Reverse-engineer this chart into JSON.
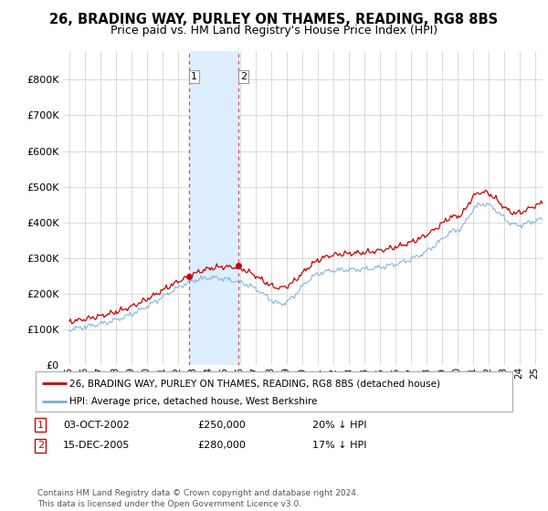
{
  "title": "26, BRADING WAY, PURLEY ON THAMES, READING, RG8 8BS",
  "subtitle": "Price paid vs. HM Land Registry's House Price Index (HPI)",
  "sale1_date": "03-OCT-2002",
  "sale1_price": 250000,
  "sale1_hpi": "20% ↓ HPI",
  "sale1_label": "1",
  "sale2_date": "15-DEC-2005",
  "sale2_price": 280000,
  "sale2_hpi": "17% ↓ HPI",
  "sale2_label": "2",
  "legend_line1": "26, BRADING WAY, PURLEY ON THAMES, READING, RG8 8BS (detached house)",
  "legend_line2": "HPI: Average price, detached house, West Berkshire",
  "footer": "Contains HM Land Registry data © Crown copyright and database right 2024.\nThis data is licensed under the Open Government Licence v3.0.",
  "price_color": "#cc0000",
  "hpi_color": "#7aade0",
  "shade_color": "#ddeeff",
  "ylim_min": 0,
  "ylim_max": 880000,
  "background_color": "#ffffff"
}
